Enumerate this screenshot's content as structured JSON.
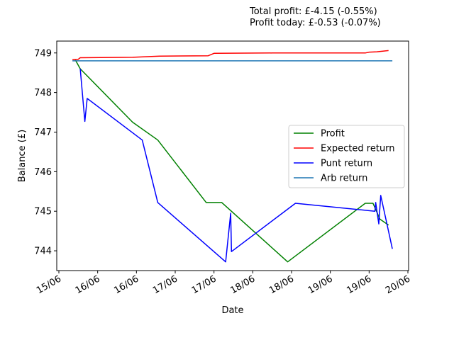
{
  "summary": {
    "total_profit": "Total profit: £-4.15 (-0.55%)",
    "profit_today": "Profit today: £-0.53 (-0.07%)"
  },
  "chart_data": {
    "type": "line",
    "xlabel": "Date",
    "ylabel": "Balance (£)",
    "x_ticks": [
      "15/06",
      "16/06",
      "16/06",
      "17/06",
      "17/06",
      "18/06",
      "18/06",
      "19/06",
      "19/06",
      "20/06"
    ],
    "x_range": [
      0,
      9
    ],
    "y_ticks": [
      744,
      745,
      746,
      747,
      748,
      749
    ],
    "ylim": [
      743.5,
      749.3
    ],
    "legend_position": "center-right",
    "grid": false,
    "series": [
      {
        "name": "Profit",
        "color": "#008000",
        "x": [
          0.42,
          0.55,
          1.9,
          2.55,
          3.8,
          4.2,
          5.9,
          7.9,
          8.1,
          8.28,
          8.5
        ],
        "y": [
          748.83,
          748.6,
          747.25,
          746.8,
          745.22,
          745.22,
          743.72,
          745.2,
          745.2,
          744.8,
          744.65
        ]
      },
      {
        "name": "Expected return",
        "color": "#ff0000",
        "x": [
          0.35,
          0.5,
          0.55,
          1.9,
          2.6,
          3.85,
          4.0,
          5.5,
          7.9,
          8.0,
          8.2,
          8.5
        ],
        "y": [
          748.83,
          748.84,
          748.88,
          748.89,
          748.92,
          748.93,
          748.99,
          749.0,
          749.0,
          749.02,
          749.03,
          749.06
        ]
      },
      {
        "name": "Punt return",
        "color": "#0000ff",
        "x": [
          0.55,
          0.67,
          0.73,
          2.15,
          2.55,
          4.3,
          4.43,
          4.45,
          6.1,
          8.15,
          8.17,
          8.25,
          8.3,
          8.6
        ],
        "y": [
          748.6,
          747.27,
          747.85,
          746.8,
          745.22,
          743.72,
          744.95,
          743.98,
          745.2,
          745.0,
          745.22,
          744.68,
          745.4,
          744.05
        ]
      },
      {
        "name": "Arb return",
        "color": "#1f77b4",
        "x": [
          0.35,
          8.6
        ],
        "y": [
          748.8,
          748.8
        ]
      }
    ]
  }
}
